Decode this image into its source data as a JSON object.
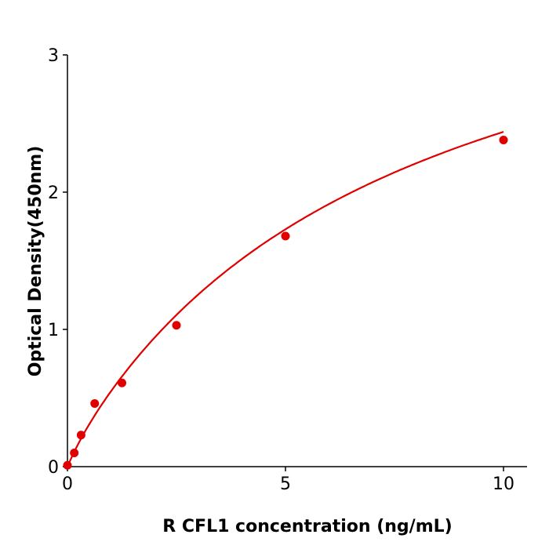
{
  "chart_data": {
    "type": "scatter",
    "title": "",
    "xlabel": "R  CFL1 concentration (ng/mL)",
    "ylabel": "Optical Density(450nm)",
    "xlim": [
      0,
      10.5
    ],
    "ylim": [
      0,
      3
    ],
    "xticks": [
      0,
      5,
      10
    ],
    "yticks": [
      0,
      1,
      2,
      3
    ],
    "grid": false,
    "color": "#e00000",
    "fit_curve": true,
    "points": [
      {
        "x": 0,
        "y": 0.01
      },
      {
        "x": 0.156,
        "y": 0.1
      },
      {
        "x": 0.3125,
        "y": 0.23
      },
      {
        "x": 0.625,
        "y": 0.46
      },
      {
        "x": 1.25,
        "y": 0.61
      },
      {
        "x": 2.5,
        "y": 1.03
      },
      {
        "x": 5,
        "y": 1.68
      },
      {
        "x": 10,
        "y": 2.38
      }
    ]
  }
}
